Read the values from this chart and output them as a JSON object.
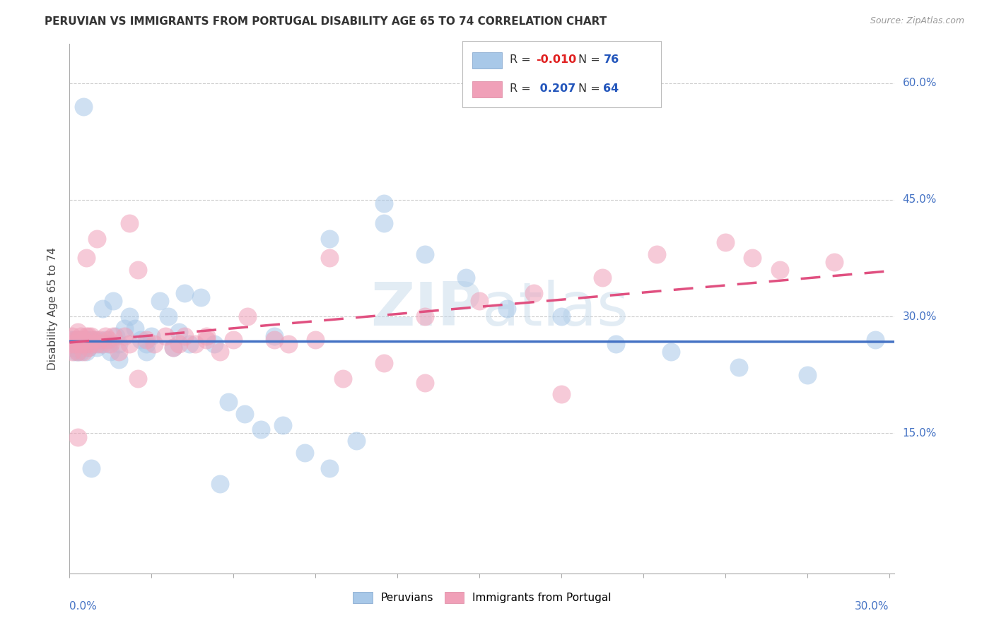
{
  "title": "PERUVIAN VS IMMIGRANTS FROM PORTUGAL DISABILITY AGE 65 TO 74 CORRELATION CHART",
  "source": "Source: ZipAtlas.com",
  "ylabel": "Disability Age 65 to 74",
  "color_blue": "#a8c8e8",
  "color_pink": "#f0a0b8",
  "line_blue": "#4472c4",
  "line_pink": "#e05080",
  "watermark": "ZIPatlas",
  "xlim": [
    0.0,
    0.302
  ],
  "ylim": [
    -0.03,
    0.65
  ],
  "ytick_vals": [
    0.15,
    0.3,
    0.45,
    0.6
  ],
  "ytick_labels": [
    "15.0%",
    "30.0%",
    "45.0%",
    "60.0%"
  ],
  "blue_x": [
    0.0005,
    0.001,
    0.001,
    0.001,
    0.002,
    0.002,
    0.002,
    0.002,
    0.003,
    0.003,
    0.003,
    0.003,
    0.003,
    0.004,
    0.004,
    0.004,
    0.005,
    0.005,
    0.005,
    0.006,
    0.006,
    0.006,
    0.007,
    0.007,
    0.008,
    0.008,
    0.009,
    0.01,
    0.01,
    0.011,
    0.012,
    0.013,
    0.014,
    0.015,
    0.016,
    0.017,
    0.018,
    0.02,
    0.022,
    0.024,
    0.026,
    0.028,
    0.03,
    0.033,
    0.036,
    0.04,
    0.044,
    0.048,
    0.053,
    0.058,
    0.064,
    0.07,
    0.078,
    0.086,
    0.095,
    0.105,
    0.115,
    0.13,
    0.145,
    0.16,
    0.18,
    0.2,
    0.22,
    0.245,
    0.27,
    0.295,
    0.115,
    0.095,
    0.038,
    0.042,
    0.075,
    0.055,
    0.028,
    0.018,
    0.008,
    0.005
  ],
  "blue_y": [
    0.27,
    0.265,
    0.27,
    0.26,
    0.265,
    0.27,
    0.255,
    0.26,
    0.265,
    0.27,
    0.255,
    0.26,
    0.27,
    0.265,
    0.27,
    0.255,
    0.265,
    0.27,
    0.26,
    0.265,
    0.27,
    0.255,
    0.27,
    0.26,
    0.265,
    0.27,
    0.265,
    0.26,
    0.27,
    0.265,
    0.31,
    0.27,
    0.265,
    0.255,
    0.32,
    0.275,
    0.265,
    0.285,
    0.3,
    0.285,
    0.27,
    0.265,
    0.275,
    0.32,
    0.3,
    0.28,
    0.265,
    0.325,
    0.265,
    0.19,
    0.175,
    0.155,
    0.16,
    0.125,
    0.105,
    0.14,
    0.445,
    0.38,
    0.35,
    0.31,
    0.3,
    0.265,
    0.255,
    0.235,
    0.225,
    0.27,
    0.42,
    0.4,
    0.26,
    0.33,
    0.275,
    0.085,
    0.255,
    0.245,
    0.105,
    0.57
  ],
  "pink_x": [
    0.0005,
    0.001,
    0.001,
    0.002,
    0.002,
    0.003,
    0.003,
    0.003,
    0.004,
    0.004,
    0.005,
    0.005,
    0.006,
    0.006,
    0.007,
    0.007,
    0.008,
    0.008,
    0.009,
    0.01,
    0.011,
    0.012,
    0.013,
    0.014,
    0.015,
    0.016,
    0.018,
    0.02,
    0.022,
    0.025,
    0.028,
    0.031,
    0.035,
    0.038,
    0.042,
    0.046,
    0.05,
    0.055,
    0.06,
    0.065,
    0.075,
    0.08,
    0.09,
    0.1,
    0.115,
    0.13,
    0.15,
    0.17,
    0.195,
    0.215,
    0.24,
    0.26,
    0.28,
    0.04,
    0.022,
    0.01,
    0.006,
    0.003,
    0.025,
    0.05,
    0.095,
    0.13,
    0.18,
    0.25
  ],
  "pink_y": [
    0.265,
    0.275,
    0.255,
    0.27,
    0.265,
    0.28,
    0.27,
    0.255,
    0.275,
    0.265,
    0.27,
    0.255,
    0.275,
    0.265,
    0.275,
    0.26,
    0.275,
    0.265,
    0.27,
    0.265,
    0.27,
    0.265,
    0.275,
    0.27,
    0.265,
    0.275,
    0.255,
    0.275,
    0.265,
    0.36,
    0.27,
    0.265,
    0.275,
    0.26,
    0.275,
    0.265,
    0.27,
    0.255,
    0.27,
    0.3,
    0.27,
    0.265,
    0.27,
    0.22,
    0.24,
    0.3,
    0.32,
    0.33,
    0.35,
    0.38,
    0.395,
    0.36,
    0.37,
    0.265,
    0.42,
    0.4,
    0.375,
    0.145,
    0.22,
    0.275,
    0.375,
    0.215,
    0.2,
    0.375
  ]
}
